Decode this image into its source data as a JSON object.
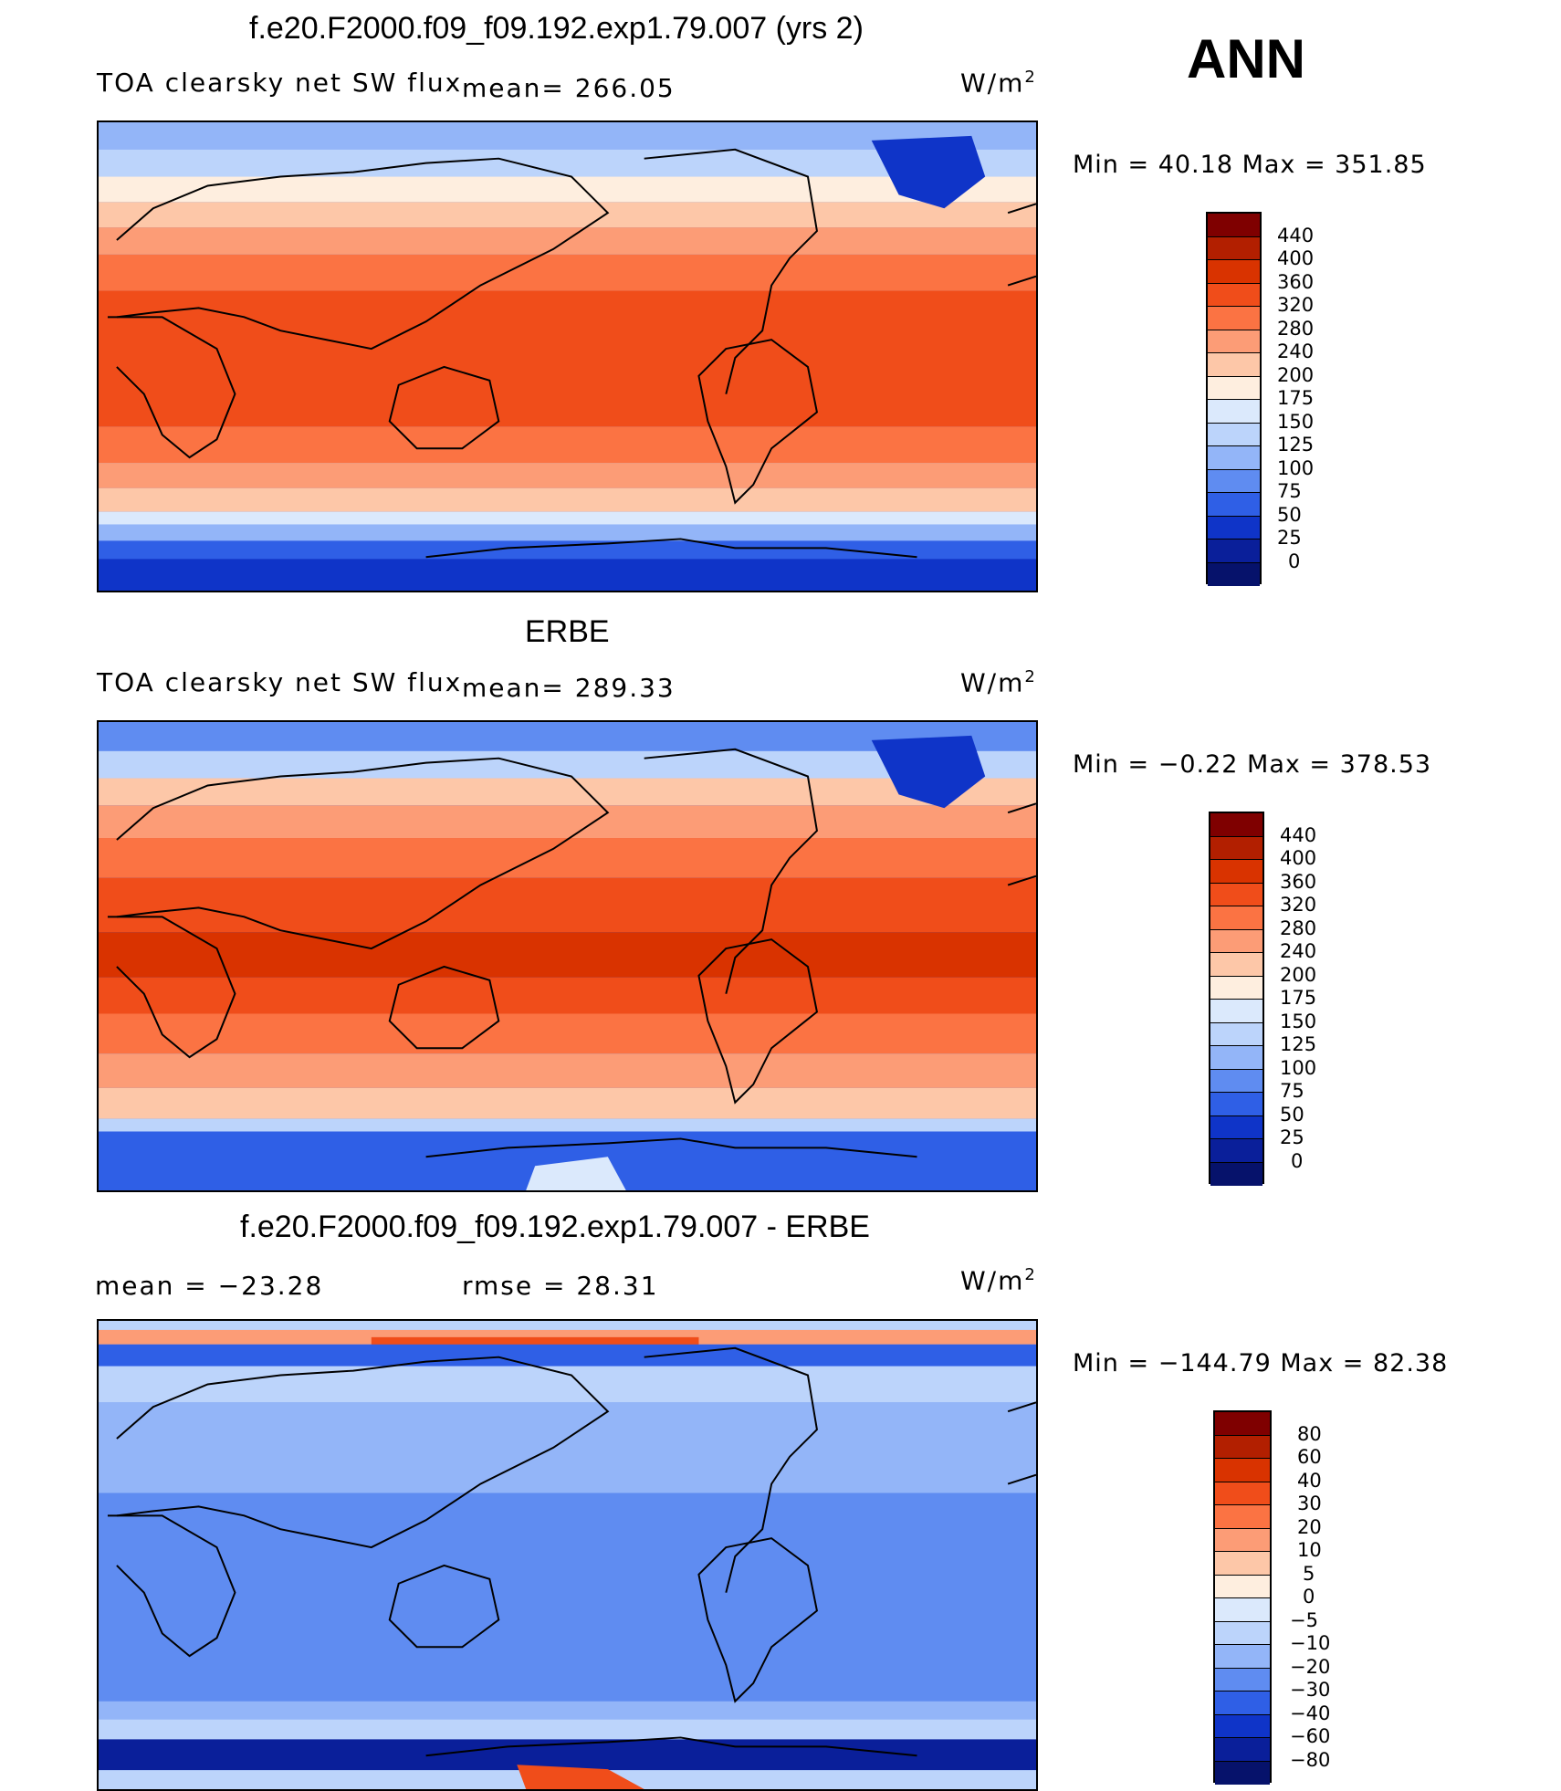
{
  "season": "ANN",
  "panels": [
    {
      "title": "f.e20.F2000.f09_f09.192.exp1.79.007 (yrs 2)",
      "subtitle": "TOA clearsky net SW flux",
      "stat": "mean=  266.05",
      "units": "W/m",
      "units_sup": "2",
      "minmax": "Min =   40.18  Max  =  351.85",
      "levels": [
        "440",
        "400",
        "360",
        "320",
        "280",
        "240",
        "200",
        "175",
        "150",
        "125",
        "100",
        "75",
        "50",
        "25",
        "0"
      ],
      "colors": [
        "#7f0000",
        "#b21f00",
        "#d93300",
        "#f04d1a",
        "#fb7343",
        "#fc9c76",
        "#fdc7a8",
        "#feeedf",
        "#dbe9fc",
        "#bcd4fb",
        "#93b5f8",
        "#5f8cf1",
        "#2f5fe6",
        "#0f34c8",
        "#0a1f9a",
        "#06126b"
      ]
    },
    {
      "title": "ERBE",
      "subtitle": "TOA clearsky net SW flux",
      "stat": "mean=  289.33",
      "units": "W/m",
      "units_sup": "2",
      "minmax": "Min =   −0.22  Max  =  378.53",
      "levels": [
        "440",
        "400",
        "360",
        "320",
        "280",
        "240",
        "200",
        "175",
        "150",
        "125",
        "100",
        "75",
        "50",
        "25",
        "0"
      ],
      "colors": [
        "#7f0000",
        "#b21f00",
        "#d93300",
        "#f04d1a",
        "#fb7343",
        "#fc9c76",
        "#fdc7a8",
        "#feeedf",
        "#dbe9fc",
        "#bcd4fb",
        "#93b5f8",
        "#5f8cf1",
        "#2f5fe6",
        "#0f34c8",
        "#0a1f9a",
        "#06126b"
      ]
    },
    {
      "title": "f.e20.F2000.f09_f09.192.exp1.79.007 - ERBE",
      "stat_left": "mean  =  −23.28",
      "stat_right": "rmse  =    28.31",
      "units": "W/m",
      "units_sup": "2",
      "minmax": "Min  = −144.79  Max  =    82.38",
      "levels": [
        "80",
        "60",
        "40",
        "30",
        "20",
        "10",
        "5",
        "0",
        "−5",
        "−10",
        "−20",
        "−30",
        "−40",
        "−60",
        "−80"
      ],
      "colors": [
        "#7f0000",
        "#b21f00",
        "#d93300",
        "#f04d1a",
        "#fb7343",
        "#fc9c76",
        "#fdc7a8",
        "#feeedf",
        "#dbe9fc",
        "#bcd4fb",
        "#93b5f8",
        "#5f8cf1",
        "#2f5fe6",
        "#0f34c8",
        "#0a1f9a",
        "#06126b"
      ]
    }
  ]
}
